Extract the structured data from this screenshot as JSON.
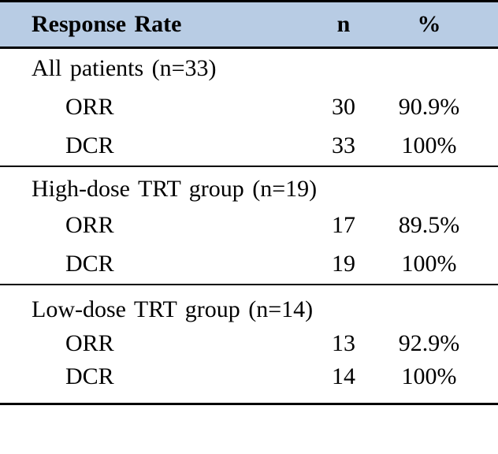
{
  "table": {
    "columns": [
      "Response Rate",
      "n",
      "%"
    ],
    "sections": [
      {
        "title": "All patients (n=33)",
        "rows": [
          {
            "label": "ORR",
            "n": "30",
            "pct": "90.9%"
          },
          {
            "label": "DCR",
            "n": "33",
            "pct": "100%"
          }
        ]
      },
      {
        "title": "High-dose TRT group (n=19)",
        "rows": [
          {
            "label": "ORR",
            "n": "17",
            "pct": "89.5%"
          },
          {
            "label": "DCR",
            "n": "19",
            "pct": "100%"
          }
        ]
      },
      {
        "title": "Low-dose TRT group (n=14)",
        "rows": [
          {
            "label": "ORR",
            "n": "13",
            "pct": "92.9%"
          },
          {
            "label": "DCR",
            "n": "14",
            "pct": "100%"
          }
        ]
      }
    ]
  },
  "colors": {
    "header_bg": "#b8cce4",
    "border": "#000000",
    "text": "#000000"
  }
}
